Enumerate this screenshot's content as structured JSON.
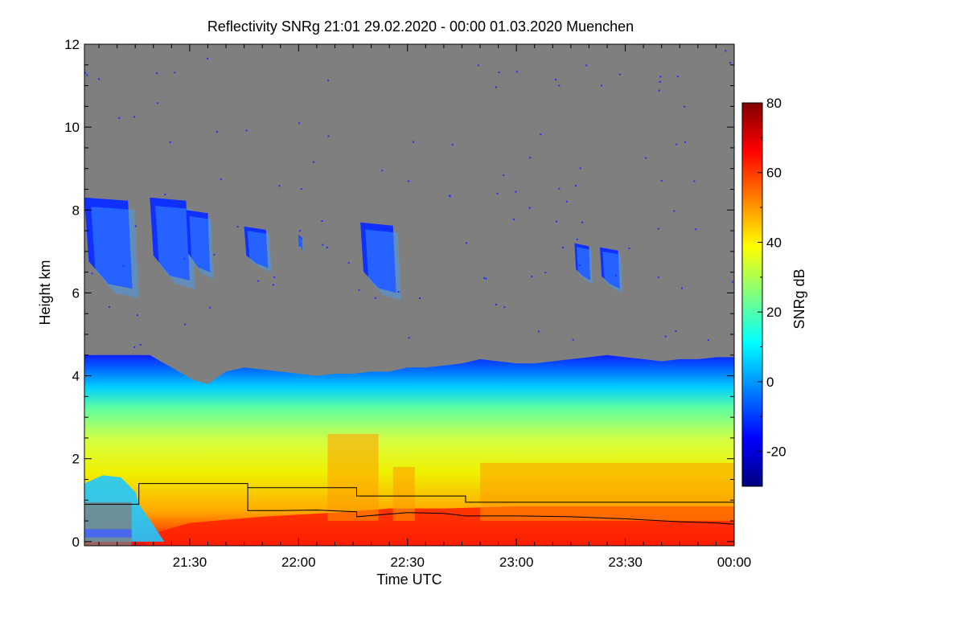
{
  "chart_data": {
    "type": "heatmap",
    "title": "Reflectivity SNRg   21:01 29.02.2020 - 00:00 01.03.2020 Muenchen",
    "xlabel": "Time UTC",
    "ylabel": "Height km",
    "x_range_minutes_utc": [
      1261,
      1440
    ],
    "y_range_km": [
      -0.1,
      12
    ],
    "x_ticks": [
      {
        "label": "21:30",
        "minutes_utc": 1290
      },
      {
        "label": "22:00",
        "minutes_utc": 1320
      },
      {
        "label": "22:30",
        "minutes_utc": 1350
      },
      {
        "label": "23:00",
        "minutes_utc": 1380
      },
      {
        "label": "23:30",
        "minutes_utc": 1410
      },
      {
        "label": "00:00",
        "minutes_utc": 1440
      }
    ],
    "y_ticks": [
      {
        "label": "0",
        "value": 0
      },
      {
        "label": "2",
        "value": 2
      },
      {
        "label": "4",
        "value": 4
      },
      {
        "label": "6",
        "value": 6
      },
      {
        "label": "8",
        "value": 8
      },
      {
        "label": "10",
        "value": 10
      },
      {
        "label": "12",
        "value": 12
      }
    ],
    "background_color": "#7f7f7f",
    "colorbar": {
      "label": "SNRg dB",
      "range": [
        -30,
        80
      ],
      "ticks": [
        {
          "label": "-20",
          "value": -20
        },
        {
          "label": "0",
          "value": 0
        },
        {
          "label": "20",
          "value": 20
        },
        {
          "label": "40",
          "value": 40
        },
        {
          "label": "60",
          "value": 60
        },
        {
          "label": "80",
          "value": 80
        }
      ],
      "colormap": "jet",
      "colors": [
        "#00007f",
        "#0000ff",
        "#0080ff",
        "#00ffff",
        "#80ff80",
        "#ffff00",
        "#ff8000",
        "#ff0000",
        "#7f0000"
      ]
    },
    "echo_top_km": [
      [
        1261,
        4.5
      ],
      [
        1270,
        4.5
      ],
      [
        1279,
        4.5
      ],
      [
        1283,
        4.3
      ],
      [
        1287,
        4.1
      ],
      [
        1291,
        3.9
      ],
      [
        1295,
        3.8
      ],
      [
        1300,
        4.1
      ],
      [
        1305,
        4.2
      ],
      [
        1310,
        4.15
      ],
      [
        1315,
        4.1
      ],
      [
        1320,
        4.05
      ],
      [
        1325,
        4.0
      ],
      [
        1330,
        4.05
      ],
      [
        1335,
        4.05
      ],
      [
        1340,
        4.1
      ],
      [
        1345,
        4.1
      ],
      [
        1350,
        4.2
      ],
      [
        1355,
        4.2
      ],
      [
        1360,
        4.25
      ],
      [
        1365,
        4.3
      ],
      [
        1370,
        4.4
      ],
      [
        1375,
        4.35
      ],
      [
        1380,
        4.3
      ],
      [
        1385,
        4.3
      ],
      [
        1390,
        4.35
      ],
      [
        1395,
        4.4
      ],
      [
        1400,
        4.45
      ],
      [
        1405,
        4.5
      ],
      [
        1410,
        4.45
      ],
      [
        1415,
        4.4
      ],
      [
        1420,
        4.35
      ],
      [
        1425,
        4.4
      ],
      [
        1430,
        4.4
      ],
      [
        1435,
        4.45
      ],
      [
        1440,
        4.45
      ]
    ],
    "upper_cloud_patches": [
      {
        "t_start": 1261,
        "t_end": 1273,
        "h_bottom": 6.1,
        "h_top": 8.3
      },
      {
        "t_start": 1279,
        "t_end": 1289,
        "h_bottom": 6.3,
        "h_top": 8.3
      },
      {
        "t_start": 1289,
        "t_end": 1295,
        "h_bottom": 6.5,
        "h_top": 8.0
      },
      {
        "t_start": 1305,
        "t_end": 1311,
        "h_bottom": 6.6,
        "h_top": 7.6
      },
      {
        "t_start": 1320,
        "t_end": 1321,
        "h_bottom": 7.0,
        "h_top": 7.4
      },
      {
        "t_start": 1337,
        "t_end": 1346,
        "h_bottom": 6.0,
        "h_top": 7.7
      },
      {
        "t_start": 1396,
        "t_end": 1400,
        "h_bottom": 6.3,
        "h_top": 7.2
      },
      {
        "t_start": 1403,
        "t_end": 1408,
        "h_bottom": 6.1,
        "h_top": 7.1
      }
    ],
    "mixing_layer_step_km": [
      [
        1261,
        0.9
      ],
      [
        1276,
        0.9
      ],
      [
        1276,
        1.4
      ],
      [
        1306,
        1.4
      ],
      [
        1306,
        1.3
      ],
      [
        1336,
        1.3
      ],
      [
        1336,
        1.1
      ],
      [
        1366,
        1.1
      ],
      [
        1366,
        0.95
      ],
      [
        1440,
        0.95
      ]
    ],
    "aerosol_layer_km": [
      [
        1306,
        1.3
      ],
      [
        1306,
        0.75
      ],
      [
        1315,
        0.75
      ],
      [
        1325,
        0.76
      ],
      [
        1336,
        0.72
      ],
      [
        1336,
        0.6
      ],
      [
        1350,
        0.7
      ],
      [
        1360,
        0.68
      ],
      [
        1366,
        0.62
      ],
      [
        1380,
        0.62
      ],
      [
        1395,
        0.6
      ],
      [
        1410,
        0.55
      ],
      [
        1425,
        0.48
      ],
      [
        1435,
        0.45
      ],
      [
        1440,
        0.42
      ]
    ]
  }
}
